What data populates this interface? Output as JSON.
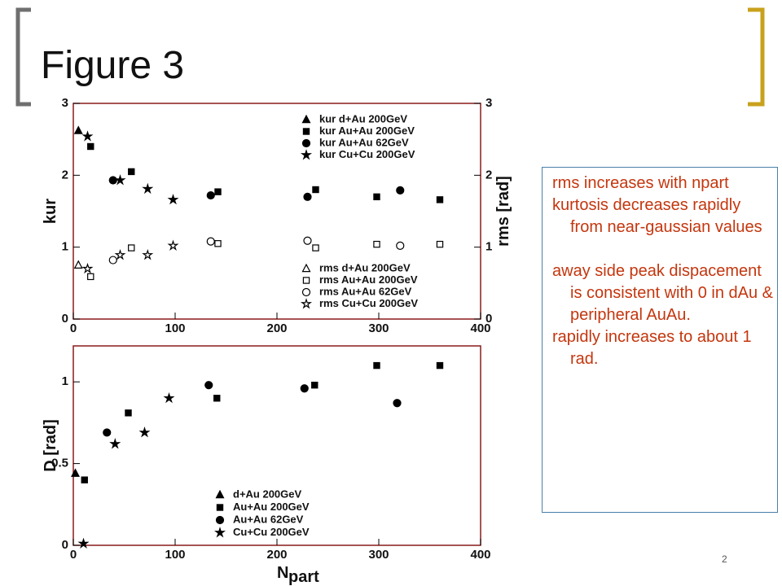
{
  "title": "Figure 3",
  "page_number": "2",
  "notes": [
    [
      "rms increases with npart",
      "kurtosis decreases rapidly from near-gaussian values"
    ],
    [
      "away side peak dispacement is consistent with 0 in dAu & peripheral AuAu.",
      "rapidly increases to about 1 rad."
    ]
  ],
  "chart_data": [
    {
      "type": "scatter",
      "y_label": "kur",
      "y2_label": "rms [rad]",
      "xlim": [
        0,
        400
      ],
      "xticks": [
        0,
        100,
        200,
        300,
        400
      ],
      "ylim": [
        0,
        3
      ],
      "yticks": [
        0,
        1,
        2,
        3
      ],
      "y2lim": [
        0,
        3
      ],
      "y2ticks": [
        0,
        1,
        2,
        3
      ],
      "series": [
        {
          "name": "kur  d+Au 200GeV",
          "marker": "triangle",
          "filled": true,
          "color": "#000000",
          "x": [
            5
          ],
          "values": [
            2.62
          ]
        },
        {
          "name": "kur  Au+Au 200GeV",
          "marker": "square",
          "filled": true,
          "color": "#000000",
          "x": [
            17,
            57,
            142,
            238,
            298,
            360
          ],
          "values": [
            2.4,
            2.05,
            1.77,
            1.8,
            1.7,
            1.66
          ]
        },
        {
          "name": "kur  Au+Au  62GeV",
          "marker": "circle",
          "filled": true,
          "color": "#000000",
          "x": [
            39,
            135,
            230,
            321
          ],
          "values": [
            1.93,
            1.72,
            1.7,
            1.79
          ]
        },
        {
          "name": "kur  Cu+Cu 200GeV",
          "marker": "star",
          "filled": true,
          "color": "#000000",
          "x": [
            14,
            46,
            73,
            98
          ],
          "values": [
            2.54,
            1.93,
            1.81,
            1.66
          ]
        },
        {
          "name": "rms  d+Au 200GeV",
          "marker": "triangle",
          "filled": false,
          "color": "#000000",
          "axis": "y2",
          "x": [
            5
          ],
          "values": [
            0.75
          ]
        },
        {
          "name": "rms  Au+Au 200GeV",
          "marker": "square",
          "filled": false,
          "color": "#000000",
          "axis": "y2",
          "x": [
            17,
            57,
            142,
            238,
            298,
            360
          ],
          "values": [
            0.59,
            0.99,
            1.05,
            0.99,
            1.04,
            1.04
          ]
        },
        {
          "name": "rms  Au+Au  62GeV",
          "marker": "circle",
          "filled": false,
          "color": "#000000",
          "axis": "y2",
          "x": [
            39,
            135,
            230,
            321
          ],
          "values": [
            0.82,
            1.08,
            1.09,
            1.02
          ]
        },
        {
          "name": "rms  Cu+Cu 200GeV",
          "marker": "star",
          "filled": false,
          "color": "#000000",
          "axis": "y2",
          "x": [
            14,
            46,
            73,
            98
          ],
          "values": [
            0.7,
            0.89,
            0.89,
            1.02
          ]
        }
      ]
    },
    {
      "type": "scatter",
      "y_label": "D  [rad]",
      "x_label": "N",
      "x_label_sub": "part",
      "xlim": [
        0,
        400
      ],
      "xticks": [
        0,
        100,
        200,
        300,
        400
      ],
      "ylim": [
        0,
        1.22
      ],
      "yticks": [
        0,
        0.5,
        1
      ],
      "series": [
        {
          "name": "d+Au 200GeV",
          "marker": "triangle",
          "filled": true,
          "color": "#000000",
          "x": [
            2
          ],
          "values": [
            0.44
          ]
        },
        {
          "name": "Au+Au 200GeV",
          "marker": "square",
          "filled": true,
          "color": "#000000",
          "x": [
            11,
            54,
            141,
            237,
            298,
            360
          ],
          "values": [
            0.4,
            0.81,
            0.9,
            0.98,
            1.1,
            1.1
          ]
        },
        {
          "name": "Au+Au  62GeV",
          "marker": "circle",
          "filled": true,
          "color": "#000000",
          "x": [
            33,
            133,
            227,
            318
          ],
          "values": [
            0.69,
            0.98,
            0.96,
            0.87
          ]
        },
        {
          "name": "Cu+Cu 200GeV",
          "marker": "star",
          "filled": true,
          "color": "#000000",
          "x": [
            10,
            41,
            70,
            94
          ],
          "values": [
            0.01,
            0.62,
            0.69,
            0.9
          ]
        }
      ]
    }
  ]
}
